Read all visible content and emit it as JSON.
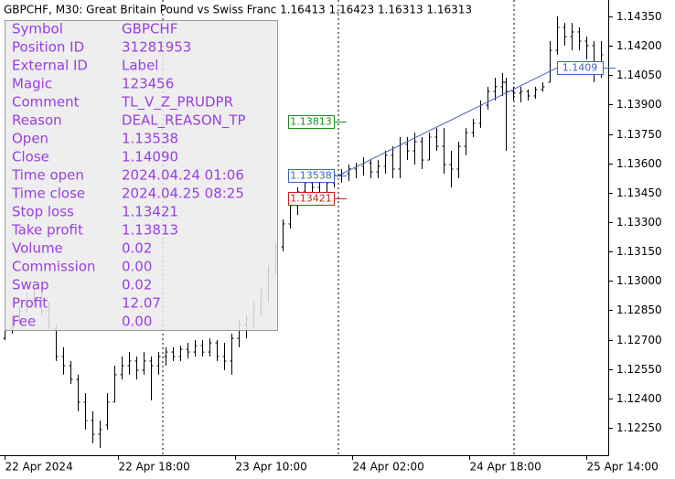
{
  "chart_data": {
    "type": "ohlc",
    "title": "GBPCHF, M30:  Great Britain Pound vs Swiss Franc  1.16413 1.16423 1.16313 1.16313",
    "color": "#000000",
    "x": [
      0,
      2,
      4,
      6,
      8,
      10,
      12,
      14,
      16,
      18,
      20,
      22,
      24,
      26,
      28,
      30,
      32,
      34,
      36,
      38,
      40,
      42,
      44,
      46,
      48,
      50,
      52,
      54,
      56,
      58,
      60,
      62,
      64,
      66,
      68,
      70,
      72,
      74,
      76,
      78,
      80,
      82,
      84,
      86,
      88,
      90,
      92,
      94,
      96,
      98,
      100,
      102,
      104,
      106,
      108,
      110,
      112,
      114,
      116,
      118,
      120,
      122,
      124,
      126,
      128,
      130,
      132,
      134,
      136,
      137,
      139,
      141,
      143,
      145,
      147,
      149,
      151,
      153,
      155,
      157,
      159,
      161,
      163
    ],
    "open": [
      1.12707,
      1.12754,
      1.12801,
      1.12847,
      1.12894,
      1.12917,
      1.12847,
      1.12754,
      1.12614,
      1.12567,
      1.12497,
      1.12381,
      1.12287,
      1.12217,
      1.12264,
      1.12381,
      1.12521,
      1.12567,
      1.12591,
      1.12544,
      1.12591,
      1.12567,
      1.12614,
      1.12637,
      1.12614,
      1.12651,
      1.12637,
      1.1267,
      1.12637,
      1.12684,
      1.12614,
      1.12591,
      1.12707,
      1.12777,
      1.12801,
      1.12871,
      1.12941,
      1.13057,
      1.13174,
      1.13291,
      1.13384,
      1.13454,
      1.13501,
      1.13477,
      1.13524,
      1.13501,
      1.13538,
      1.13547,
      1.13571,
      1.13585,
      1.13603,
      1.13557,
      1.13585,
      1.13641,
      1.13571,
      1.13697,
      1.13664,
      1.13711,
      1.13617,
      1.13734,
      1.13687,
      1.13594,
      1.13571,
      1.13687,
      1.13757,
      1.13804,
      1.13897,
      1.13967,
      1.13991,
      1.14014,
      1.13967,
      1.13958,
      1.13967,
      1.13944,
      1.13977,
      1.14014,
      1.14177,
      1.14294,
      1.14247,
      1.14271,
      1.14224,
      1.14201,
      1.14061
    ],
    "high": [
      1.12777,
      1.12824,
      1.12871,
      1.12941,
      1.12964,
      1.12941,
      1.12894,
      1.12777,
      1.12661,
      1.12591,
      1.12521,
      1.12427,
      1.12334,
      1.12287,
      1.12427,
      1.12567,
      1.12614,
      1.12637,
      1.12614,
      1.12637,
      1.12614,
      1.12637,
      1.12661,
      1.12661,
      1.1267,
      1.12684,
      1.12698,
      1.12698,
      1.12707,
      1.12698,
      1.12684,
      1.12731,
      1.12801,
      1.12824,
      1.12894,
      1.12964,
      1.13081,
      1.13197,
      1.13314,
      1.13407,
      1.13477,
      1.13524,
      1.13524,
      1.13547,
      1.13547,
      1.13571,
      1.13571,
      1.13594,
      1.13603,
      1.13631,
      1.13617,
      1.13617,
      1.13664,
      1.13687,
      1.13734,
      1.13734,
      1.13757,
      1.13734,
      1.13757,
      1.13781,
      1.13781,
      1.13664,
      1.13711,
      1.13781,
      1.13827,
      1.13921,
      1.13991,
      1.14037,
      1.14061,
      1.14037,
      1.13991,
      1.13991,
      1.13977,
      1.13991,
      1.14014,
      1.14224,
      1.1435,
      1.14317,
      1.14317,
      1.14294,
      1.14247,
      1.14224,
      1.14224
    ],
    "low": [
      1.12698,
      1.12731,
      1.12777,
      1.12847,
      1.12871,
      1.12824,
      1.12754,
      1.12591,
      1.12521,
      1.12474,
      1.12334,
      1.12241,
      1.12171,
      1.12147,
      1.12241,
      1.12381,
      1.12497,
      1.12521,
      1.12497,
      1.12521,
      1.1239,
      1.12521,
      1.12567,
      1.12591,
      1.12591,
      1.12604,
      1.12614,
      1.12614,
      1.12614,
      1.12591,
      1.12544,
      1.12521,
      1.12661,
      1.12707,
      1.12754,
      1.12824,
      1.12894,
      1.13034,
      1.13151,
      1.13267,
      1.13337,
      1.13384,
      1.13431,
      1.13454,
      1.13454,
      1.13477,
      1.13501,
      1.1351,
      1.13524,
      1.13538,
      1.13524,
      1.13524,
      1.13547,
      1.13524,
      1.13524,
      1.13617,
      1.13594,
      1.13571,
      1.13617,
      1.13664,
      1.13547,
      1.13477,
      1.13524,
      1.13641,
      1.13734,
      1.13781,
      1.13874,
      1.13921,
      1.13944,
      1.13664,
      1.13921,
      1.13911,
      1.13921,
      1.1393,
      1.13967,
      1.14014,
      1.14154,
      1.14201,
      1.14177,
      1.14177,
      1.14131,
      1.14014,
      1.14037
    ],
    "close": [
      1.12754,
      1.12801,
      1.12847,
      1.12894,
      1.12917,
      1.12847,
      1.12777,
      1.12614,
      1.12567,
      1.12497,
      1.12381,
      1.12287,
      1.12217,
      1.12241,
      1.12381,
      1.12521,
      1.12567,
      1.12591,
      1.12544,
      1.12591,
      1.12567,
      1.12614,
      1.12637,
      1.12614,
      1.12651,
      1.12637,
      1.1267,
      1.12637,
      1.12684,
      1.12614,
      1.12591,
      1.12707,
      1.12777,
      1.12801,
      1.12871,
      1.12941,
      1.13057,
      1.13174,
      1.13291,
      1.13384,
      1.13454,
      1.13501,
      1.13477,
      1.13524,
      1.13501,
      1.13538,
      1.13547,
      1.13571,
      1.13585,
      1.13603,
      1.13557,
      1.13585,
      1.13641,
      1.13571,
      1.13697,
      1.13664,
      1.13711,
      1.13617,
      1.13734,
      1.13687,
      1.13594,
      1.13571,
      1.13687,
      1.13757,
      1.13804,
      1.13897,
      1.13967,
      1.13991,
      1.14014,
      1.13967,
      1.13958,
      1.13967,
      1.13944,
      1.13977,
      1.13991,
      1.14177,
      1.14294,
      1.14247,
      1.14271,
      1.14224,
      1.14201,
      1.14061,
      1.14154
    ],
    "xlim": [
      -1.25,
      165
    ],
    "ylim": [
      1.1211,
      1.14434
    ],
    "xticks": [
      {
        "value": 0,
        "label": "22 Apr 2024"
      },
      {
        "value": 31,
        "label": "22 Apr 18:00"
      },
      {
        "value": 63,
        "label": "23 Apr 10:00"
      },
      {
        "value": 95,
        "label": "24 Apr 02:00"
      },
      {
        "value": 127,
        "label": "24 Apr 18:00"
      },
      {
        "value": 159,
        "label": "25 Apr 14:00"
      }
    ],
    "yticks": [
      {
        "value": 1.1435,
        "label": "1.14350"
      },
      {
        "value": 1.142,
        "label": "1.14200"
      },
      {
        "value": 1.1405,
        "label": "1.14050"
      },
      {
        "value": 1.139,
        "label": "1.13900"
      },
      {
        "value": 1.1375,
        "label": "1.13750"
      },
      {
        "value": 1.136,
        "label": "1.13600"
      },
      {
        "value": 1.1345,
        "label": "1.13450"
      },
      {
        "value": 1.133,
        "label": "1.13300"
      },
      {
        "value": 1.1315,
        "label": "1.13150"
      },
      {
        "value": 1.13,
        "label": "1.13000"
      },
      {
        "value": 1.1285,
        "label": "1.12850"
      },
      {
        "value": 1.127,
        "label": "1.12700"
      },
      {
        "value": 1.1255,
        "label": "1.12550"
      },
      {
        "value": 1.124,
        "label": "1.12400"
      },
      {
        "value": 1.1225,
        "label": "1.12250"
      }
    ],
    "trade": {
      "open": 1.13538,
      "close": 1.1409,
      "stop_loss": 1.13421,
      "take_profit": 1.13813
    }
  },
  "info_panel": {
    "rows": [
      [
        "Symbol",
        "GBPCHF"
      ],
      [
        "Position ID",
        "31281953"
      ],
      [
        "External ID",
        "Label"
      ],
      [
        "Magic",
        "123456"
      ],
      [
        "Comment",
        "TL_V_Z_PRUDPR"
      ],
      [
        "Reason",
        "DEAL_REASON_TP"
      ],
      [
        "Open",
        "1.13538"
      ],
      [
        "Close",
        "1.14090"
      ],
      [
        "Time open",
        "2024.04.24 01:06"
      ],
      [
        "Time close",
        "2024.04.25 08:25"
      ],
      [
        "Stop loss",
        "1.13421"
      ],
      [
        "Take profit",
        "1.13813"
      ],
      [
        "Volume",
        "0.02"
      ],
      [
        "Commission",
        "0.00"
      ],
      [
        "Swap",
        "0.02"
      ],
      [
        "Profit",
        "12.07"
      ],
      [
        "Fee",
        "0.00"
      ]
    ]
  }
}
